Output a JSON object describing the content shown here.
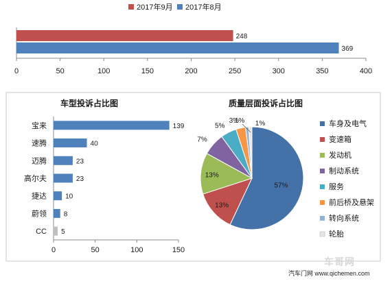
{
  "chart_data": [
    {
      "type": "bar",
      "orientation": "horizontal",
      "title": "",
      "series": [
        {
          "name": "2017年9月",
          "values": [
            248
          ],
          "color": "#c0504d"
        },
        {
          "name": "2017年8月",
          "values": [
            369
          ],
          "color": "#4f81bd"
        }
      ],
      "xlim": [
        0,
        400
      ],
      "xticks": [
        0,
        50,
        100,
        150,
        200,
        250,
        300,
        350,
        400
      ],
      "legend": "top-center",
      "grid": false
    },
    {
      "type": "bar",
      "orientation": "horizontal",
      "title": "车型投诉占比图",
      "categories": [
        "宝来",
        "速腾",
        "迈腾",
        "高尔夫",
        "捷达",
        "蔚领",
        "CC"
      ],
      "values": [
        139,
        40,
        23,
        23,
        10,
        8,
        5
      ],
      "colors": [
        "#4f81bd",
        "#4f81bd",
        "#4f81bd",
        "#4f81bd",
        "#4f81bd",
        "#4f81bd",
        "#bfbfbf"
      ],
      "xlim": [
        0,
        150
      ],
      "xticks": [
        0,
        50,
        100,
        150
      ],
      "grid": false
    },
    {
      "type": "pie",
      "title": "质量层面投诉占比图",
      "labels": [
        "车身及电气",
        "变速箱",
        "发动机",
        "制动系统",
        "服务",
        "前后桥及悬架",
        "转向系统",
        "轮胎"
      ],
      "values": [
        57,
        13,
        13,
        7,
        5,
        3,
        1,
        1
      ],
      "value_labels": [
        "57%",
        "13%",
        "13%",
        "7%",
        "5%",
        "3%",
        "1%",
        "1%"
      ],
      "colors": [
        "#4472a8",
        "#c0504d",
        "#9bbb59",
        "#8064a2",
        "#4bacc6",
        "#f79646",
        "#95b3d7",
        "#e6e6e6"
      ],
      "legend": "right"
    }
  ],
  "footer": {
    "text": "汽车门网 www.qichemen.com"
  },
  "watermark": {
    "text": "车哥网"
  }
}
